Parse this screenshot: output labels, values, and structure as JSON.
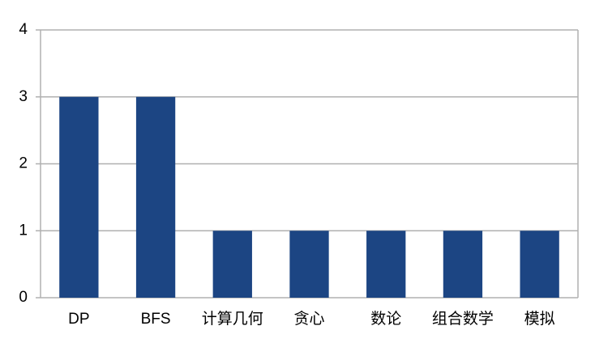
{
  "chart_data": {
    "type": "bar",
    "categories": [
      "DP",
      "BFS",
      "计算几何",
      "贪心",
      "数论",
      "组合数学",
      "模拟"
    ],
    "values": [
      3,
      3,
      1,
      1,
      1,
      1,
      1
    ],
    "color": "#1c4583",
    "ylim": [
      0,
      4
    ],
    "yticks": [
      0,
      1,
      2,
      3,
      4
    ],
    "grid": true
  }
}
